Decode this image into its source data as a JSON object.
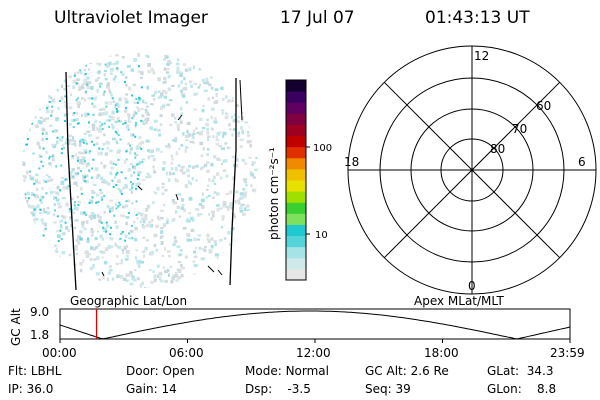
{
  "header": {
    "instrument": "Ultraviolet Imager",
    "date": "17 Jul 07",
    "time": "01:43:13 UT"
  },
  "colorbar": {
    "label": "photon cm⁻²s⁻¹",
    "ticks": [
      "100",
      "10"
    ],
    "colors": [
      "#e6e6e6",
      "#cfe8ea",
      "#a5e3e6",
      "#55d3d8",
      "#1ecad0",
      "#7fe060",
      "#39d030",
      "#a0e000",
      "#e8e000",
      "#f0c000",
      "#f08a00",
      "#e03000",
      "#c00000",
      "#a00020",
      "#800040",
      "#600060",
      "#3a0060",
      "#14002e"
    ]
  },
  "polar": {
    "mlt_labels": [
      "12",
      "18",
      "6",
      "0"
    ],
    "lat_labels": [
      "60",
      "70",
      "80"
    ]
  },
  "orbit": {
    "left_label": "Geographic Lat/Lon",
    "right_label": "Apex MLat/MLT",
    "y_axis_label": "GC Alt",
    "y_ticks": [
      "9.0",
      "1.8"
    ],
    "x_ticks": [
      "00:00",
      "06:00",
      "12:00",
      "18:00",
      "23:59"
    ],
    "marker_time_hours": 1.72,
    "marker_color": "#e00000"
  },
  "info": {
    "row1": [
      {
        "label": "Flt:",
        "value": "LBHL"
      },
      {
        "label": "Door:",
        "value": "Open"
      },
      {
        "label": "Mode:",
        "value": "Normal"
      },
      {
        "label": "GC Alt:",
        "value": "2.6 Re"
      },
      {
        "label": "GLat:",
        "value": "34.3"
      }
    ],
    "row2": [
      {
        "label": "IP:",
        "value": "36.0"
      },
      {
        "label": "Gain:",
        "value": "14"
      },
      {
        "label": "Dsp:",
        "value": "-3.5"
      },
      {
        "label": "Seq:",
        "value": "39"
      },
      {
        "label": "GLon:",
        "value": "8.8"
      }
    ]
  }
}
